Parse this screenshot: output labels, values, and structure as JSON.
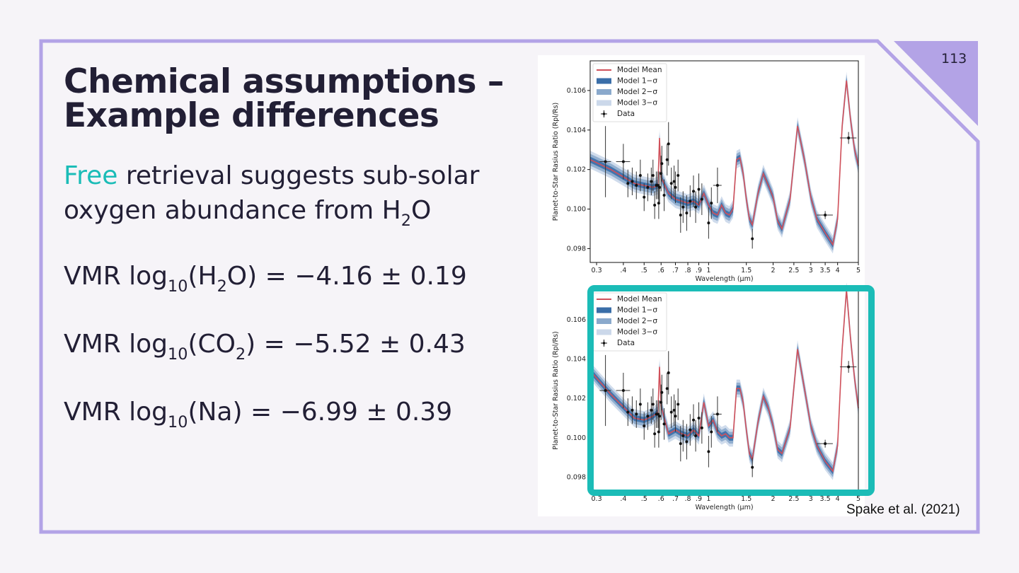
{
  "slide": {
    "title_line1": "Chemical assumptions –",
    "title_line2": "Example differences",
    "page_number": "113",
    "intro": {
      "accent_word": "Free",
      "line1_rest": " retrieval suggests sub-solar",
      "line2_pre": "oxygen abundance from H",
      "line2_sub": "2",
      "line2_post": "O"
    },
    "equations": [
      {
        "pre": "VMR log",
        "base_sub": "10",
        "species_pre": "(H",
        "species_sub": "2",
        "species_post": "O)",
        "value": " = −4.16 ± 0.19"
      },
      {
        "pre": "VMR log",
        "base_sub": "10",
        "species_pre": "(CO",
        "species_sub": "2",
        "species_post": ")",
        "value": " = −5.52 ± 0.43"
      },
      {
        "pre": "VMR log",
        "base_sub": "10",
        "species_pre": "(Na",
        "species_sub": "",
        "species_post": ")",
        "value": " = −6.99 ± 0.39"
      }
    ],
    "citation": "Spake et al. (2021)",
    "colors": {
      "accent": "#1bbcb7",
      "frame": "#b3a3e6",
      "text": "#221f35",
      "model_mean": "#d0505a",
      "sigma1": "#3a6ea8",
      "sigma2": "#8aa9cc",
      "sigma3": "#cbd8ea"
    }
  },
  "chart_data": [
    {
      "type": "line",
      "title": "",
      "xlabel": "Wavelength (μm)",
      "ylabel": "Planet-to-Star Rasius Ratio (Rpl/Rs)",
      "xscale": "log",
      "xlim": [
        0.28,
        5.0
      ],
      "ylim": [
        0.0973,
        0.1075
      ],
      "xticks": [
        0.3,
        0.4,
        0.5,
        0.6,
        0.7,
        0.8,
        0.9,
        1.0,
        1.5,
        2.0,
        2.5,
        3.0,
        3.5,
        4.0,
        5.0
      ],
      "xtick_labels": [
        "0.3",
        ".4",
        ".5",
        ".6",
        ".7",
        ".8",
        ".9",
        "1",
        "1.5",
        "2",
        "2.5",
        "3",
        "3.5",
        "4",
        "5"
      ],
      "yticks": [
        0.098,
        0.1,
        0.102,
        0.104,
        0.106
      ],
      "ytick_labels": [
        "0.098",
        "0.100",
        "0.102",
        "0.104",
        "0.106"
      ],
      "legend": {
        "placement": "top-left",
        "entries": [
          "Model Mean",
          "Model 1−σ",
          "Model 2−σ",
          "Model 3−σ",
          "Data"
        ]
      },
      "series": [
        {
          "name": "Model Mean",
          "x": [
            0.28,
            0.35,
            0.45,
            0.55,
            0.58,
            0.59,
            0.6,
            0.65,
            0.7,
            0.75,
            0.8,
            0.85,
            0.9,
            0.95,
            1.0,
            1.05,
            1.1,
            1.15,
            1.2,
            1.25,
            1.3,
            1.35,
            1.4,
            1.45,
            1.5,
            1.55,
            1.6,
            1.7,
            1.8,
            1.9,
            2.0,
            2.1,
            2.2,
            2.4,
            2.6,
            2.8,
            3.0,
            3.2,
            3.5,
            3.8,
            4.0,
            4.2,
            4.4,
            4.6,
            4.8,
            5.0
          ],
          "y": [
            0.1025,
            0.102,
            0.1013,
            0.1011,
            0.1012,
            0.1036,
            0.1016,
            0.1008,
            0.1005,
            0.1004,
            0.1003,
            0.1004,
            0.1002,
            0.1008,
            0.1002,
            0.0998,
            0.0997,
            0.1002,
            0.0998,
            0.0997,
            0.1,
            0.1025,
            0.1026,
            0.1018,
            0.1005,
            0.0995,
            0.0992,
            0.1008,
            0.1018,
            0.1012,
            0.1006,
            0.0994,
            0.099,
            0.1005,
            0.1042,
            0.1025,
            0.1006,
            0.0995,
            0.0988,
            0.0982,
            0.0995,
            0.1042,
            0.1065,
            0.1045,
            0.103,
            0.1022
          ]
        },
        {
          "name": "Data",
          "points": [
            [
              0.33,
              0.1024,
              0.0018,
              0.02
            ],
            [
              0.4,
              0.1024,
              0.0009,
              0.03
            ],
            [
              0.42,
              0.1013,
              0.0007,
              0
            ],
            [
              0.44,
              0.1014,
              0.0007,
              0
            ],
            [
              0.46,
              0.1012,
              0.0007,
              0
            ],
            [
              0.48,
              0.1017,
              0.0008,
              0
            ],
            [
              0.5,
              0.1006,
              0.0007,
              0
            ],
            [
              0.52,
              0.1011,
              0.0007,
              0
            ],
            [
              0.54,
              0.1014,
              0.0007,
              0
            ],
            [
              0.55,
              0.1017,
              0.0008,
              0
            ],
            [
              0.56,
              0.1002,
              0.0007,
              0
            ],
            [
              0.57,
              0.1012,
              0.0007,
              0
            ],
            [
              0.58,
              0.1012,
              0.0007,
              0
            ],
            [
              0.585,
              0.1003,
              0.0008,
              0
            ],
            [
              0.59,
              0.1011,
              0.0008,
              0
            ],
            [
              0.6,
              0.1018,
              0.0009,
              0
            ],
            [
              0.605,
              0.1023,
              0.0009,
              0
            ],
            [
              0.62,
              0.1007,
              0.0008,
              0
            ],
            [
              0.64,
              0.1025,
              0.0008,
              0
            ],
            [
              0.65,
              0.1033,
              0.0011,
              0
            ],
            [
              0.67,
              0.1013,
              0.0008,
              0
            ],
            [
              0.69,
              0.1014,
              0.0008,
              0
            ],
            [
              0.7,
              0.1011,
              0.0008,
              0
            ],
            [
              0.72,
              0.1017,
              0.0008,
              0
            ],
            [
              0.74,
              0.0997,
              0.0009,
              0
            ],
            [
              0.76,
              0.1001,
              0.0008,
              0
            ],
            [
              0.79,
              0.0998,
              0.0009,
              0
            ],
            [
              0.82,
              0.1004,
              0.0008,
              0
            ],
            [
              0.85,
              0.1009,
              0.0008,
              0
            ],
            [
              0.87,
              0.1001,
              0.0008,
              0
            ],
            [
              0.9,
              0.101,
              0.0008,
              0
            ],
            [
              0.93,
              0.1005,
              0.0008,
              0
            ],
            [
              1.0,
              0.0993,
              0.0008,
              0
            ],
            [
              1.03,
              0.1003,
              0.0008,
              0
            ],
            [
              1.1,
              0.1012,
              0.0009,
              0.05
            ]
          ]
        }
      ]
    },
    {
      "type": "line",
      "title": "",
      "xlabel": "Wavelength (μm)",
      "ylabel": "Planet-to-Star Rasius Ratio (Rpl/Rs)",
      "xscale": "log",
      "xlim": [
        0.28,
        5.0
      ],
      "ylim": [
        0.0973,
        0.1075
      ],
      "xticks": [
        0.3,
        0.4,
        0.5,
        0.6,
        0.7,
        0.8,
        0.9,
        1.0,
        1.5,
        2.0,
        2.5,
        3.0,
        3.5,
        4.0,
        5.0
      ],
      "xtick_labels": [
        "0.3",
        ".4",
        ".5",
        ".6",
        ".7",
        ".8",
        ".9",
        "1",
        "1.5",
        "2",
        "2.5",
        "3",
        "3.5",
        "4",
        "5"
      ],
      "yticks": [
        0.098,
        0.1,
        0.102,
        0.104,
        0.106
      ],
      "ytick_labels": [
        "0.098",
        "0.100",
        "0.102",
        "0.104",
        "0.106"
      ],
      "legend": {
        "placement": "top-left",
        "entries": [
          "Model Mean",
          "Model 1−σ",
          "Model 2−σ",
          "Model 3−σ",
          "Data"
        ]
      },
      "highlighted": true,
      "series": [
        {
          "name": "Model Mean",
          "x": [
            0.28,
            0.35,
            0.45,
            0.5,
            0.55,
            0.58,
            0.59,
            0.6,
            0.65,
            0.7,
            0.75,
            0.8,
            0.85,
            0.9,
            0.95,
            1.0,
            1.05,
            1.1,
            1.15,
            1.2,
            1.25,
            1.3,
            1.35,
            1.4,
            1.45,
            1.5,
            1.55,
            1.6,
            1.7,
            1.8,
            1.9,
            2.0,
            2.1,
            2.2,
            2.4,
            2.6,
            2.8,
            3.0,
            3.2,
            3.5,
            3.8,
            4.0,
            4.2,
            4.4,
            4.6,
            4.8,
            5.0
          ],
          "y": [
            0.1034,
            0.1022,
            0.101,
            0.1009,
            0.1011,
            0.1013,
            0.1036,
            0.1016,
            0.1002,
            0.1004,
            0.1002,
            0.1001,
            0.1004,
            0.1001,
            0.1018,
            0.1006,
            0.1009,
            0.1003,
            0.1001,
            0.1002,
            0.1,
            0.1,
            0.1025,
            0.1025,
            0.1018,
            0.1004,
            0.0992,
            0.0989,
            0.1008,
            0.1021,
            0.1015,
            0.1006,
            0.0994,
            0.0992,
            0.1005,
            0.1045,
            0.1025,
            0.1006,
            0.0996,
            0.0988,
            0.0983,
            0.0996,
            0.1045,
            0.1075,
            0.105,
            0.103,
            0.1015
          ]
        },
        {
          "name": "Data",
          "points": [
            [
              0.33,
              0.1024,
              0.0018,
              0.02
            ],
            [
              0.4,
              0.1024,
              0.0009,
              0.03
            ],
            [
              0.42,
              0.1013,
              0.0007,
              0
            ],
            [
              0.44,
              0.1014,
              0.0007,
              0
            ],
            [
              0.46,
              0.1012,
              0.0007,
              0
            ],
            [
              0.48,
              0.1017,
              0.0008,
              0
            ],
            [
              0.5,
              0.1006,
              0.0007,
              0
            ],
            [
              0.52,
              0.1011,
              0.0007,
              0
            ],
            [
              0.54,
              0.1014,
              0.0007,
              0
            ],
            [
              0.55,
              0.1017,
              0.0008,
              0
            ],
            [
              0.56,
              0.1002,
              0.0007,
              0
            ],
            [
              0.57,
              0.1012,
              0.0007,
              0
            ],
            [
              0.58,
              0.1012,
              0.0007,
              0
            ],
            [
              0.585,
              0.1003,
              0.0008,
              0
            ],
            [
              0.59,
              0.1011,
              0.0008,
              0
            ],
            [
              0.6,
              0.1018,
              0.0009,
              0
            ],
            [
              0.605,
              0.1023,
              0.0009,
              0
            ],
            [
              0.62,
              0.1007,
              0.0008,
              0
            ],
            [
              0.64,
              0.1025,
              0.0008,
              0
            ],
            [
              0.65,
              0.1033,
              0.0011,
              0
            ],
            [
              0.67,
              0.1013,
              0.0008,
              0
            ],
            [
              0.69,
              0.1014,
              0.0008,
              0
            ],
            [
              0.7,
              0.1011,
              0.0008,
              0
            ],
            [
              0.72,
              0.1017,
              0.0008,
              0
            ],
            [
              0.74,
              0.0997,
              0.0009,
              0
            ],
            [
              0.76,
              0.1001,
              0.0008,
              0
            ],
            [
              0.79,
              0.0998,
              0.0009,
              0
            ],
            [
              0.82,
              0.1004,
              0.0008,
              0
            ],
            [
              0.85,
              0.1009,
              0.0008,
              0
            ],
            [
              0.87,
              0.1001,
              0.0008,
              0
            ],
            [
              0.9,
              0.101,
              0.0008,
              0
            ],
            [
              0.93,
              0.1005,
              0.0008,
              0
            ],
            [
              1.0,
              0.0993,
              0.0008,
              0
            ],
            [
              1.03,
              0.1003,
              0.0008,
              0
            ],
            [
              1.1,
              0.1012,
              0.0009,
              0.05
            ]
          ]
        }
      ]
    }
  ]
}
